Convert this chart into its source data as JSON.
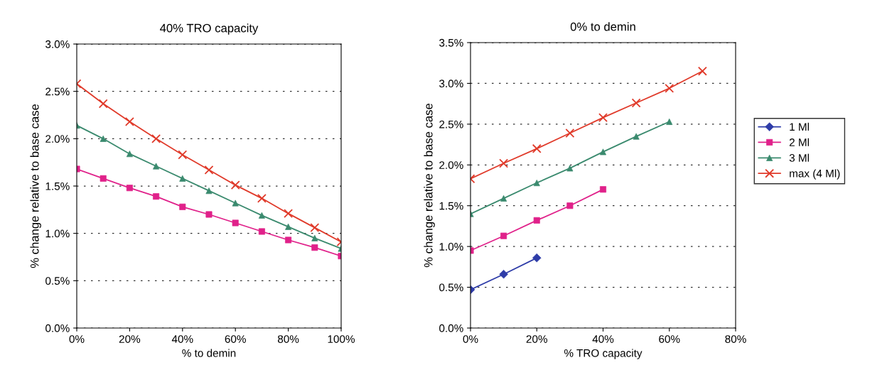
{
  "chart_data": [
    {
      "type": "line",
      "title": "40% TRO capacity",
      "xlabel": "% to demin",
      "ylabel": "% change relative to base case",
      "x": [
        0,
        10,
        20,
        30,
        40,
        50,
        60,
        70,
        80,
        90,
        100
      ],
      "series": [
        {
          "color": "#e0218a",
          "marker": "square",
          "values": [
            1.68,
            1.58,
            1.48,
            1.39,
            1.28,
            1.2,
            1.11,
            1.02,
            0.93,
            0.85,
            0.76
          ]
        },
        {
          "color": "#3a8a6e",
          "marker": "triangle",
          "values": [
            2.14,
            2.0,
            1.84,
            1.71,
            1.58,
            1.45,
            1.32,
            1.19,
            1.07,
            0.95,
            0.84
          ]
        },
        {
          "color": "#e03a2a",
          "marker": "cross",
          "values": [
            2.58,
            2.37,
            2.18,
            2.0,
            1.83,
            1.67,
            1.51,
            1.37,
            1.21,
            1.06,
            0.91
          ]
        }
      ],
      "xlim": [
        0,
        100
      ],
      "xticks": [
        {
          "value": 0,
          "label": "0%"
        },
        {
          "value": 20,
          "label": "20%"
        },
        {
          "value": 40,
          "label": "40%"
        },
        {
          "value": 60,
          "label": "60%"
        },
        {
          "value": 80,
          "label": "80%"
        },
        {
          "value": 100,
          "label": "100%"
        }
      ],
      "ylim": [
        0,
        3.0
      ],
      "yticks": [
        {
          "value": 0,
          "label": "0.0%"
        },
        {
          "value": 0.5,
          "label": "0.5%"
        },
        {
          "value": 1.0,
          "label": "1.0%"
        },
        {
          "value": 1.5,
          "label": "1.5%"
        },
        {
          "value": 2.0,
          "label": "2.0%"
        },
        {
          "value": 2.5,
          "label": "2.5%"
        },
        {
          "value": 3.0,
          "label": "3.0%"
        }
      ],
      "grid": "y",
      "legend": false
    },
    {
      "type": "line",
      "title": "0% to demin",
      "xlabel": "% TRO capacity",
      "ylabel": "% change relative to base case",
      "series": [
        {
          "name": "1 Ml",
          "color": "#2e3ca8",
          "marker": "diamond",
          "x": [
            0,
            10,
            20
          ],
          "values": [
            0.47,
            0.66,
            0.86
          ]
        },
        {
          "name": "2 Ml",
          "color": "#e0218a",
          "marker": "square",
          "x": [
            0,
            10,
            20,
            30,
            40
          ],
          "values": [
            0.95,
            1.13,
            1.32,
            1.5,
            1.7
          ]
        },
        {
          "name": "3 Ml",
          "color": "#3a8a6e",
          "marker": "triangle",
          "x": [
            0,
            10,
            20,
            30,
            40,
            50,
            60
          ],
          "values": [
            1.4,
            1.59,
            1.78,
            1.96,
            2.16,
            2.35,
            2.53
          ]
        },
        {
          "name": "max (4 Ml)",
          "color": "#e03a2a",
          "marker": "cross",
          "x": [
            0,
            10,
            20,
            30,
            40,
            50,
            60,
            70
          ],
          "values": [
            1.83,
            2.02,
            2.2,
            2.39,
            2.58,
            2.76,
            2.94,
            3.15
          ]
        }
      ],
      "xlim": [
        0,
        80
      ],
      "xticks": [
        {
          "value": 0,
          "label": "0%"
        },
        {
          "value": 20,
          "label": "20%"
        },
        {
          "value": 40,
          "label": "40%"
        },
        {
          "value": 60,
          "label": "60%"
        },
        {
          "value": 80,
          "label": "80%"
        }
      ],
      "ylim": [
        0,
        3.5
      ],
      "yticks": [
        {
          "value": 0,
          "label": "0.0%"
        },
        {
          "value": 0.5,
          "label": "0.5%"
        },
        {
          "value": 1.0,
          "label": "1.0%"
        },
        {
          "value": 1.5,
          "label": "1.5%"
        },
        {
          "value": 2.0,
          "label": "2.0%"
        },
        {
          "value": 2.5,
          "label": "2.5%"
        },
        {
          "value": 3.0,
          "label": "3.0%"
        },
        {
          "value": 3.5,
          "label": "3.5%"
        }
      ],
      "grid": "y",
      "legend": "right"
    }
  ]
}
